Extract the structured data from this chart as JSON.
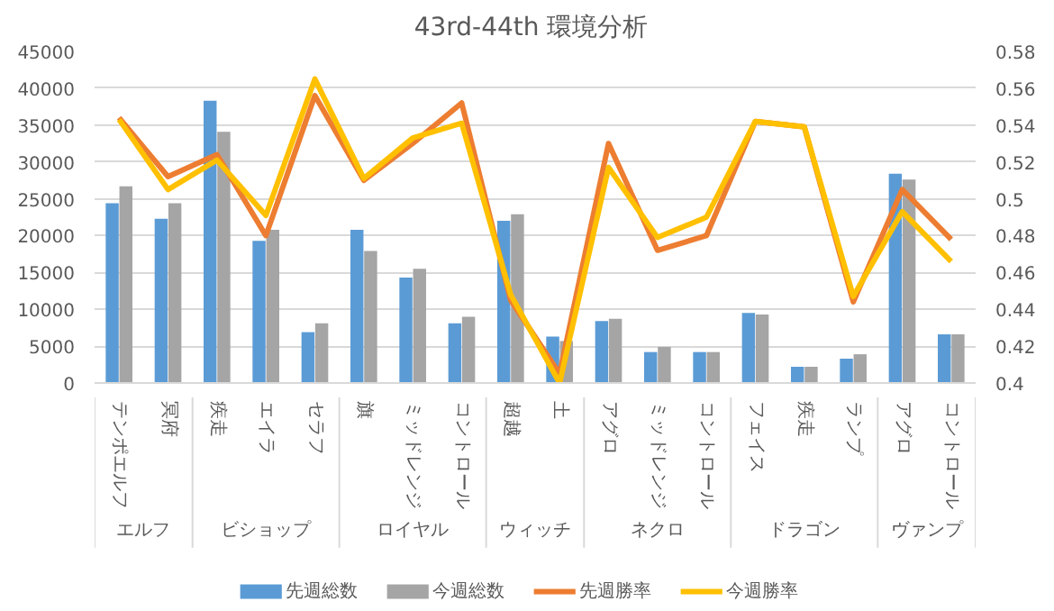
{
  "chart_data": {
    "type": "bar",
    "title": "43rd-44th  環境分析",
    "categories": [
      "テンポエルフ",
      "冥府",
      "疾走",
      "エイラ",
      "セラフ",
      "旗",
      "ミッドレンジ",
      "コントロール",
      "超越",
      "土",
      "アグロ",
      "ミッドレンジ",
      "コントロール",
      "フェイス",
      "疾走",
      "ランプ",
      "アグロ",
      "コントロール"
    ],
    "annotations": [
      "エルフ",
      "ビショップ",
      "ロイヤル",
      "ウィッチ",
      "ネクロ",
      "ドラゴン",
      "ヴァンプ"
    ],
    "series": [
      {
        "name": "先週総数",
        "color": "#5b9bd5",
        "values": [
          24400,
          22300,
          38300,
          19300,
          6900,
          20800,
          14300,
          8100,
          22000,
          6300,
          8400,
          4200,
          4200,
          9500,
          2200,
          3300,
          28400,
          6600
        ]
      },
      {
        "name": "今週総数",
        "color": "#a5a5a5",
        "values": [
          26700,
          24400,
          34100,
          20800,
          8100,
          17900,
          15500,
          9000,
          22900,
          5700,
          8700,
          4900,
          4200,
          9300,
          2200,
          3900,
          27600,
          6600
        ]
      },
      {
        "name": "先週勝率",
        "type": "line",
        "axis": "y2",
        "color": "#ed7d31",
        "values": [
          0.544,
          0.512,
          0.524,
          0.48,
          0.556,
          0.51,
          0.53,
          0.552,
          0.445,
          0.405,
          0.53,
          0.472,
          0.48,
          0.542,
          0.539,
          0.444,
          0.505,
          0.478
        ]
      },
      {
        "name": "今週勝率",
        "type": "line",
        "axis": "y2",
        "color": "#ffc000",
        "values": [
          0.543,
          0.505,
          0.521,
          0.491,
          0.565,
          0.511,
          0.533,
          0.541,
          0.448,
          0.4,
          0.517,
          0.479,
          0.49,
          0.542,
          0.539,
          0.447,
          0.493,
          0.466
        ]
      }
    ],
    "ylim": [
      0,
      45000
    ],
    "yticks": [
      0,
      5000,
      10000,
      15000,
      20000,
      25000,
      30000,
      35000,
      40000,
      45000
    ],
    "y2lim": [
      0.4,
      0.58
    ],
    "y2ticks": [
      0.4,
      0.42,
      0.44,
      0.46,
      0.48,
      0.5,
      0.52,
      0.54,
      0.56,
      0.58
    ],
    "grid": "y",
    "legend": "bottom"
  }
}
